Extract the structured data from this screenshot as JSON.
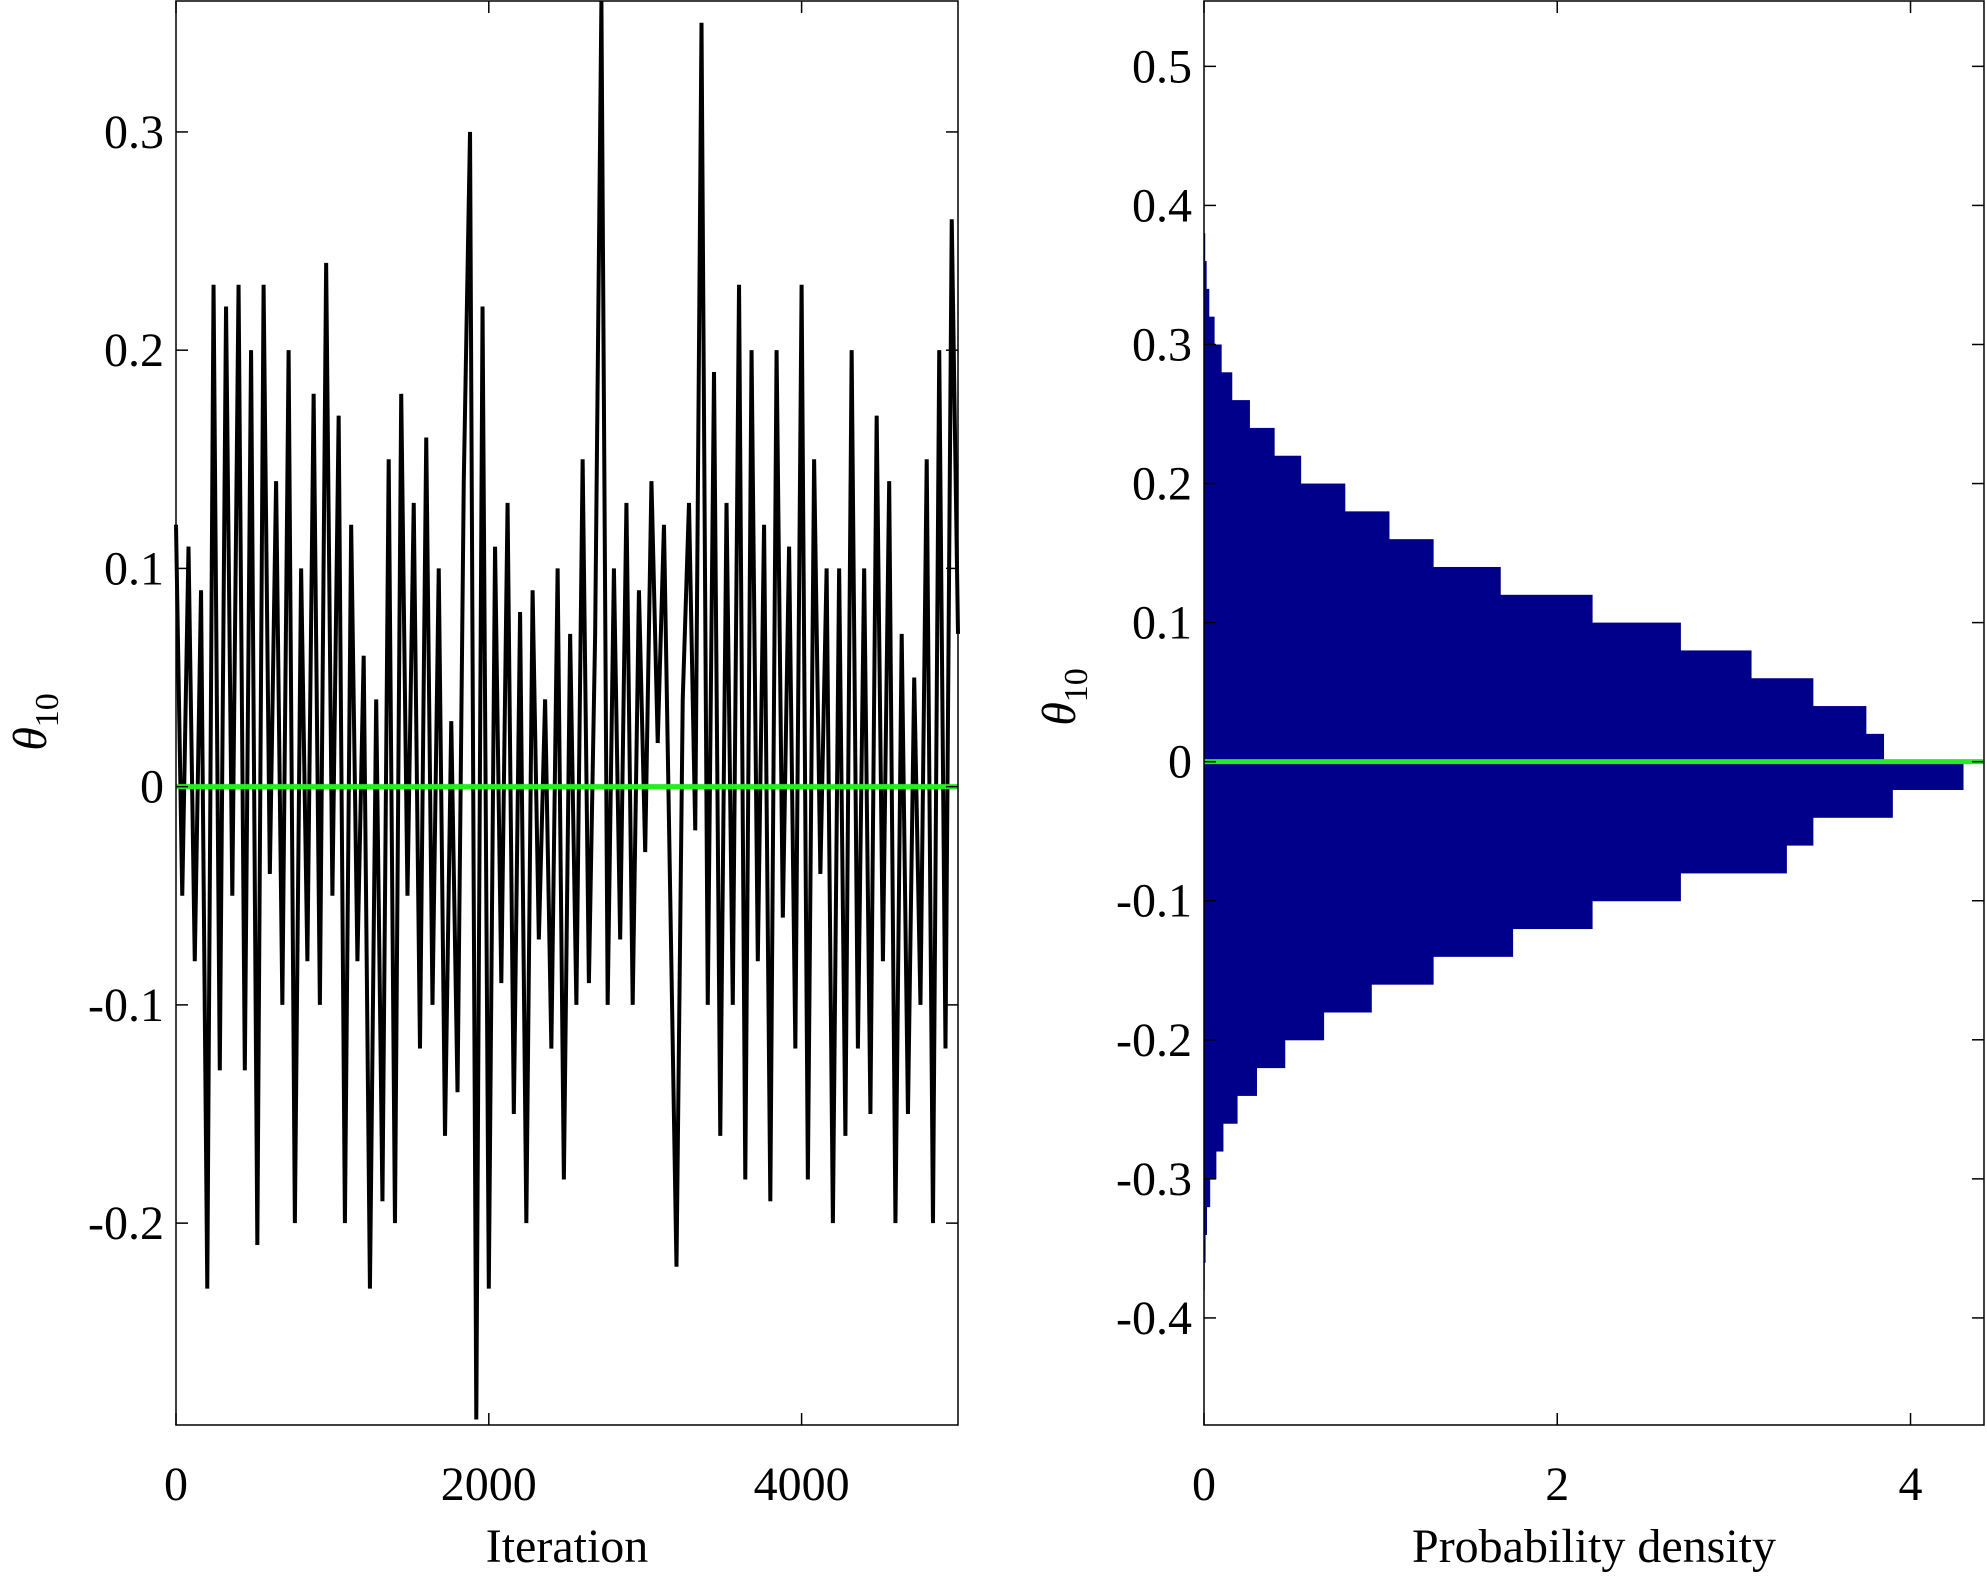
{
  "chart_data": [
    {
      "type": "line",
      "xlabel": "Iteration",
      "ylabel": "θ",
      "ylabel_subscript": "10",
      "color": "#000000",
      "reference_line": 0,
      "reference_color": "#22ee22",
      "xlim": [
        0,
        5000
      ],
      "ylim": [
        -0.2925,
        0.36
      ],
      "xticks": [
        0,
        2000,
        4000
      ],
      "yticks": [
        -0.2,
        -0.1,
        0,
        0.1,
        0.2,
        0.3
      ],
      "x": [
        0,
        40,
        80,
        120,
        160,
        200,
        240,
        280,
        320,
        360,
        400,
        440,
        480,
        520,
        560,
        600,
        640,
        680,
        720,
        760,
        800,
        840,
        880,
        920,
        960,
        1000,
        1040,
        1080,
        1120,
        1160,
        1200,
        1240,
        1280,
        1320,
        1360,
        1400,
        1440,
        1480,
        1520,
        1560,
        1600,
        1640,
        1680,
        1720,
        1760,
        1800,
        1840,
        1880,
        1920,
        1960,
        2000,
        2040,
        2080,
        2120,
        2160,
        2200,
        2240,
        2280,
        2320,
        2360,
        2400,
        2440,
        2480,
        2520,
        2560,
        2600,
        2640,
        2680,
        2720,
        2760,
        2800,
        2840,
        2880,
        2920,
        2960,
        3000,
        3040,
        3080,
        3120,
        3160,
        3200,
        3240,
        3280,
        3320,
        3360,
        3400,
        3440,
        3480,
        3520,
        3560,
        3600,
        3640,
        3680,
        3720,
        3760,
        3800,
        3840,
        3880,
        3920,
        3960,
        4000,
        4040,
        4080,
        4120,
        4160,
        4200,
        4240,
        4280,
        4320,
        4360,
        4400,
        4440,
        4480,
        4520,
        4560,
        4600,
        4640,
        4680,
        4720,
        4760,
        4800,
        4840,
        4880,
        4920,
        4960,
        5000
      ],
      "values": [
        0.12,
        -0.05,
        0.11,
        -0.08,
        0.09,
        -0.23,
        0.23,
        -0.13,
        0.22,
        -0.05,
        0.23,
        -0.13,
        0.2,
        -0.21,
        0.23,
        -0.04,
        0.14,
        -0.1,
        0.2,
        -0.2,
        0.1,
        -0.08,
        0.18,
        -0.1,
        0.24,
        -0.05,
        0.17,
        -0.2,
        0.12,
        -0.08,
        0.06,
        -0.23,
        0.04,
        -0.19,
        0.15,
        -0.2,
        0.18,
        -0.05,
        0.13,
        -0.12,
        0.16,
        -0.1,
        0.1,
        -0.16,
        0.03,
        -0.14,
        0.14,
        0.3,
        -0.29,
        0.22,
        -0.23,
        0.11,
        -0.09,
        0.13,
        -0.15,
        0.08,
        -0.2,
        0.09,
        -0.07,
        0.04,
        -0.12,
        0.1,
        -0.18,
        0.07,
        -0.1,
        0.15,
        -0.09,
        0.07,
        0.36,
        -0.1,
        0.1,
        -0.07,
        0.13,
        -0.1,
        0.09,
        -0.03,
        0.14,
        0.02,
        0.12,
        -0.05,
        -0.22,
        0.04,
        0.13,
        -0.02,
        0.35,
        -0.1,
        0.19,
        -0.16,
        0.13,
        -0.1,
        0.23,
        -0.18,
        0.2,
        -0.08,
        0.12,
        -0.19,
        0.2,
        -0.06,
        0.11,
        -0.12,
        0.23,
        -0.18,
        0.15,
        -0.04,
        0.1,
        -0.2,
        0.1,
        -0.16,
        0.2,
        -0.12,
        0.1,
        -0.15,
        0.17,
        -0.08,
        0.14,
        -0.2,
        0.07,
        -0.15,
        0.05,
        -0.1,
        0.15,
        -0.2,
        0.2,
        -0.12,
        0.26,
        0.07
      ]
    },
    {
      "type": "histogram",
      "orientation": "horizontal",
      "xlabel": "Probability density",
      "ylabel": "θ",
      "ylabel_subscript": "10",
      "color": "#00008b",
      "reference_line": 0,
      "reference_color": "#22ee22",
      "xlim": [
        0,
        4.416
      ],
      "ylim": [
        -0.477,
        0.547
      ],
      "xticks": [
        0,
        2,
        4
      ],
      "yticks": [
        -0.4,
        -0.3,
        -0.2,
        -0.1,
        0,
        0.1,
        0.2,
        0.3,
        0.4,
        0.5
      ],
      "bins": [
        -0.4,
        -0.38,
        -0.36,
        -0.34,
        -0.32,
        -0.3,
        -0.28,
        -0.26,
        -0.24,
        -0.22,
        -0.2,
        -0.18,
        -0.16,
        -0.14,
        -0.12,
        -0.1,
        -0.08,
        -0.06,
        -0.04,
        -0.02,
        0,
        0.02,
        0.04,
        0.06,
        0.08,
        0.1,
        0.12,
        0.14,
        0.16,
        0.18,
        0.2,
        0.22,
        0.24,
        0.26,
        0.28,
        0.3,
        0.32,
        0.34,
        0.36,
        0.38,
        0.4
      ],
      "counts": [
        0.002,
        0.004,
        0.009,
        0.017,
        0.035,
        0.07,
        0.11,
        0.19,
        0.3,
        0.46,
        0.68,
        0.95,
        1.3,
        1.75,
        2.2,
        2.7,
        3.3,
        3.45,
        3.9,
        4.3,
        3.85,
        3.75,
        3.45,
        3.1,
        2.7,
        2.2,
        1.68,
        1.3,
        1.05,
        0.8,
        0.55,
        0.4,
        0.26,
        0.16,
        0.1,
        0.06,
        0.03,
        0.015,
        0.007,
        0.003
      ]
    }
  ]
}
